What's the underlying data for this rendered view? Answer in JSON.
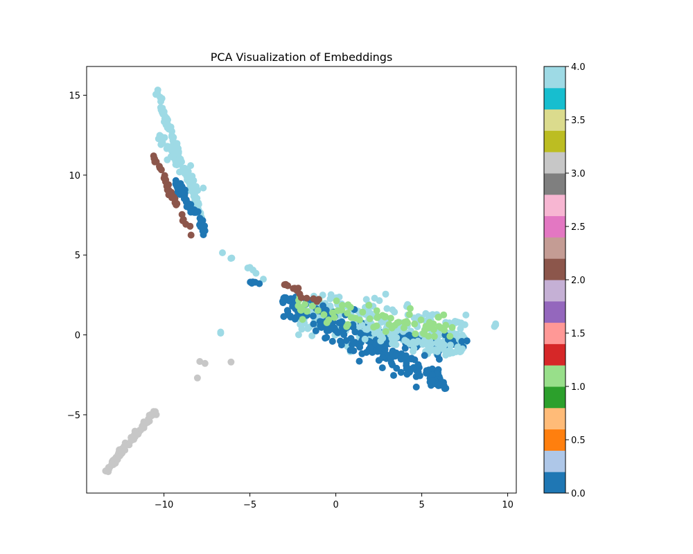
{
  "chart_data": {
    "type": "scatter",
    "title": "PCA Visualization of Embeddings",
    "xlabel": "",
    "ylabel": "",
    "xlim": [
      -14.5,
      10.5
    ],
    "ylim": [
      -9.9,
      16.8
    ],
    "x_ticks": [
      -10,
      -5,
      0,
      5,
      10
    ],
    "x_tick_labels": [
      "−10",
      "−5",
      "0",
      "5",
      "10"
    ],
    "y_ticks": [
      -5,
      0,
      5,
      10,
      15
    ],
    "y_tick_labels": [
      "−5",
      "0",
      "5",
      "10",
      "15"
    ],
    "grid": false,
    "legend": "none",
    "colormap": "tab20",
    "colormap_colors": [
      "#1f77b4",
      "#aec7e8",
      "#ff7f0e",
      "#ffbb78",
      "#2ca02c",
      "#98df8a",
      "#d62728",
      "#ff9896",
      "#9467bd",
      "#c5b0d5",
      "#8c564b",
      "#c49c94",
      "#e377c2",
      "#f7b6d2",
      "#7f7f7f",
      "#c7c7c7",
      "#bcbd22",
      "#dbdb8d",
      "#17becf",
      "#9edae5"
    ],
    "colorbar": {
      "min": 0.0,
      "max": 4.0,
      "ticks": [
        0.0,
        0.5,
        1.0,
        1.5,
        2.0,
        2.5,
        3.0,
        3.5,
        4.0
      ],
      "tick_labels": [
        "0.0",
        "0.5",
        "1.0",
        "1.5",
        "2.0",
        "2.5",
        "3.0",
        "3.5",
        "4.0"
      ]
    },
    "classes": [
      {
        "label": 0,
        "color": "#1f77b4"
      },
      {
        "label": 1,
        "color": "#98df8a"
      },
      {
        "label": 2,
        "color": "#8c564b"
      },
      {
        "label": 3,
        "color": "#c7c7c7"
      },
      {
        "label": 4,
        "color": "#9edae5"
      }
    ],
    "clusters": [
      {
        "label": 4,
        "n": 80,
        "x": [
          -10.5,
          -7.8
        ],
        "y": [
          7.0,
          15.7
        ],
        "slope": -2.9,
        "w": 0.5
      },
      {
        "label": 4,
        "n": 40,
        "x": [
          -10.6,
          -7.7
        ],
        "y": [
          9.0,
          12.5
        ],
        "slope": -1.4,
        "w": 0.6
      },
      {
        "label": 2,
        "n": 35,
        "x": [
          -10.6,
          -8.4
        ],
        "y": [
          6.1,
          11.3
        ],
        "slope": -2.3,
        "w": 0.4
      },
      {
        "label": 0,
        "n": 45,
        "x": [
          -9.4,
          -7.6
        ],
        "y": [
          6.0,
          10.2
        ],
        "slope": -1.8,
        "w": 0.6
      },
      {
        "label": 4,
        "n": 8,
        "x": [
          -6.8,
          -3.5
        ],
        "y": [
          3.0,
          5.3
        ],
        "slope": -0.7,
        "w": 0.3
      },
      {
        "label": 0,
        "n": 5,
        "x": [
          -5.0,
          -3.7
        ],
        "y": [
          3.1,
          3.6
        ],
        "slope": 0,
        "w": 0.2
      },
      {
        "label": 4,
        "n": 220,
        "x": [
          -2.2,
          7.6
        ],
        "y": [
          -1.3,
          2.6
        ],
        "slope": -0.2,
        "w": 1.5
      },
      {
        "label": 0,
        "n": 220,
        "x": [
          -3.1,
          6.4
        ],
        "y": [
          -3.4,
          2.4
        ],
        "slope": -0.52,
        "w": 1.1
      },
      {
        "label": 0,
        "n": 50,
        "x": [
          2.5,
          7.7
        ],
        "y": [
          -0.9,
          0.0
        ],
        "slope": -0.1,
        "w": 0.5
      },
      {
        "label": 4,
        "n": 60,
        "x": [
          1.5,
          7.6
        ],
        "y": [
          -1.4,
          0.7
        ],
        "slope": -0.25,
        "w": 0.6
      },
      {
        "label": 1,
        "n": 75,
        "x": [
          -2.2,
          6.9
        ],
        "y": [
          -0.3,
          2.5
        ],
        "slope": -0.15,
        "w": 0.9
      },
      {
        "label": 2,
        "n": 14,
        "x": [
          -3.0,
          -1.0
        ],
        "y": [
          2.0,
          3.2
        ],
        "slope": -0.5,
        "w": 0.3
      },
      {
        "label": 3,
        "n": 75,
        "x": [
          -13.4,
          -10.4
        ],
        "y": [
          -8.6,
          -4.6
        ],
        "slope": 1.3,
        "w": 0.25
      },
      {
        "label": 3,
        "n": 4,
        "x": [
          -8.8,
          -5.5
        ],
        "y": [
          -3.0,
          -1.6
        ],
        "slope": 0,
        "w": 0.2
      },
      {
        "label": 4,
        "n": 3,
        "x": [
          9.2,
          9.3
        ],
        "y": [
          0.5,
          0.7
        ],
        "slope": 0,
        "w": 0.1
      },
      {
        "label": 4,
        "n": 2,
        "x": [
          -6.7,
          -6.7
        ],
        "y": [
          0.1,
          0.2
        ],
        "slope": 0,
        "w": 0.05
      }
    ]
  }
}
